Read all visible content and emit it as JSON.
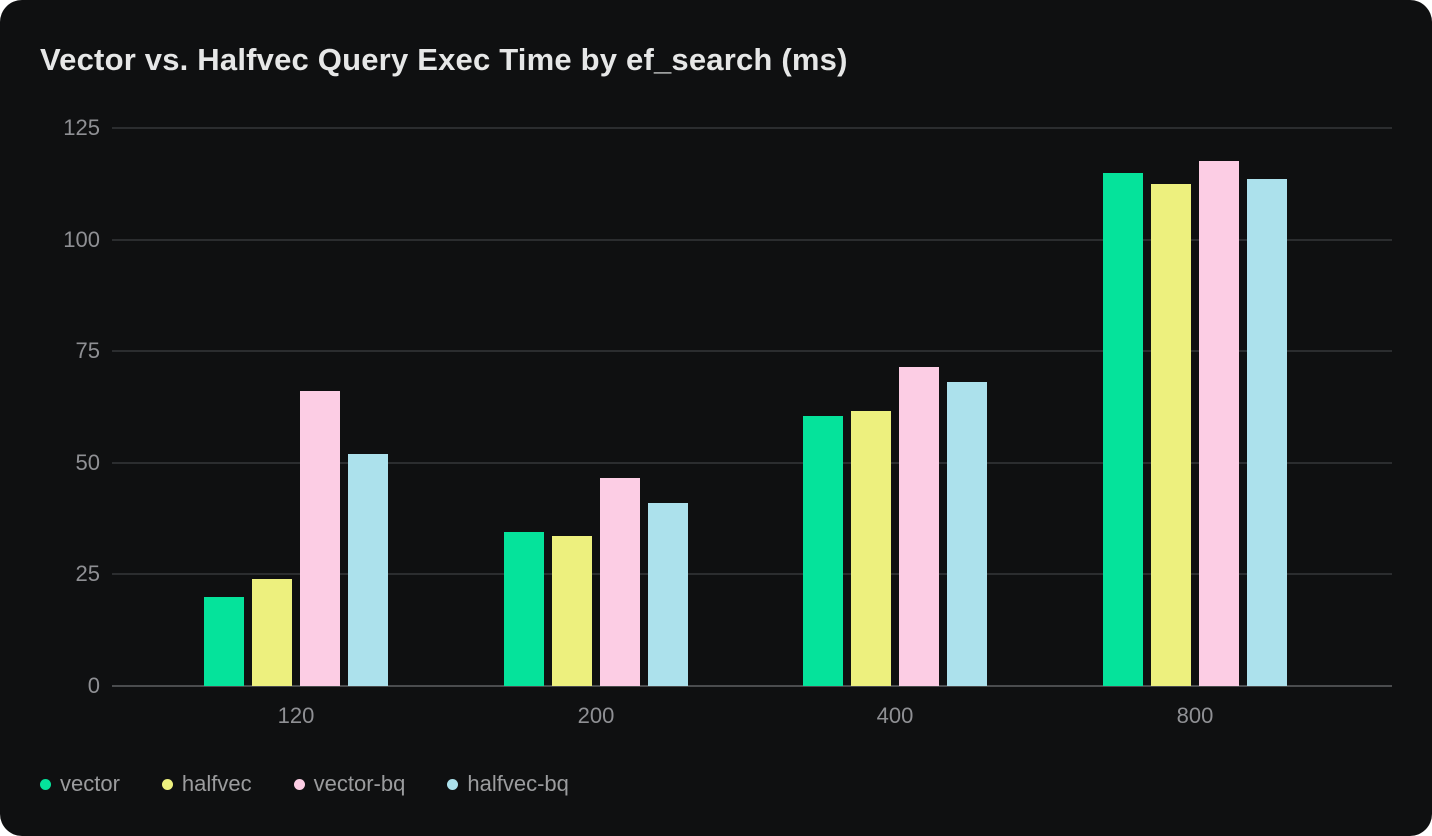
{
  "card": {
    "background": "#0f1011",
    "page_background": "#ffffff"
  },
  "chart_data": {
    "type": "bar",
    "title": "Vector vs. Halfvec Query Exec Time by ef_search (ms)",
    "xlabel": "",
    "ylabel": "",
    "categories": [
      "120",
      "200",
      "400",
      "800"
    ],
    "series": [
      {
        "name": "vector",
        "color": "#05e39b",
        "values": [
          20,
          34.5,
          60.5,
          115
        ]
      },
      {
        "name": "halfvec",
        "color": "#edf07e",
        "values": [
          24,
          33.5,
          61.5,
          112.5
        ]
      },
      {
        "name": "vector-bq",
        "color": "#fccde4",
        "values": [
          66,
          46.5,
          71.5,
          117.5
        ]
      },
      {
        "name": "halfvec-bq",
        "color": "#ace1ec",
        "values": [
          52,
          41,
          68,
          113.5
        ]
      }
    ],
    "ylim": [
      0,
      125
    ],
    "yticks": [
      0,
      25,
      50,
      75,
      100,
      125
    ],
    "grid": true,
    "legend_position": "bottom",
    "colors": {
      "title_text": "#e6e7e7",
      "axis_label_text": "#8f9094",
      "legend_text": "#9b9c9e",
      "gridline": "#2b2d2f",
      "baseline": "#4a4c4e"
    }
  }
}
